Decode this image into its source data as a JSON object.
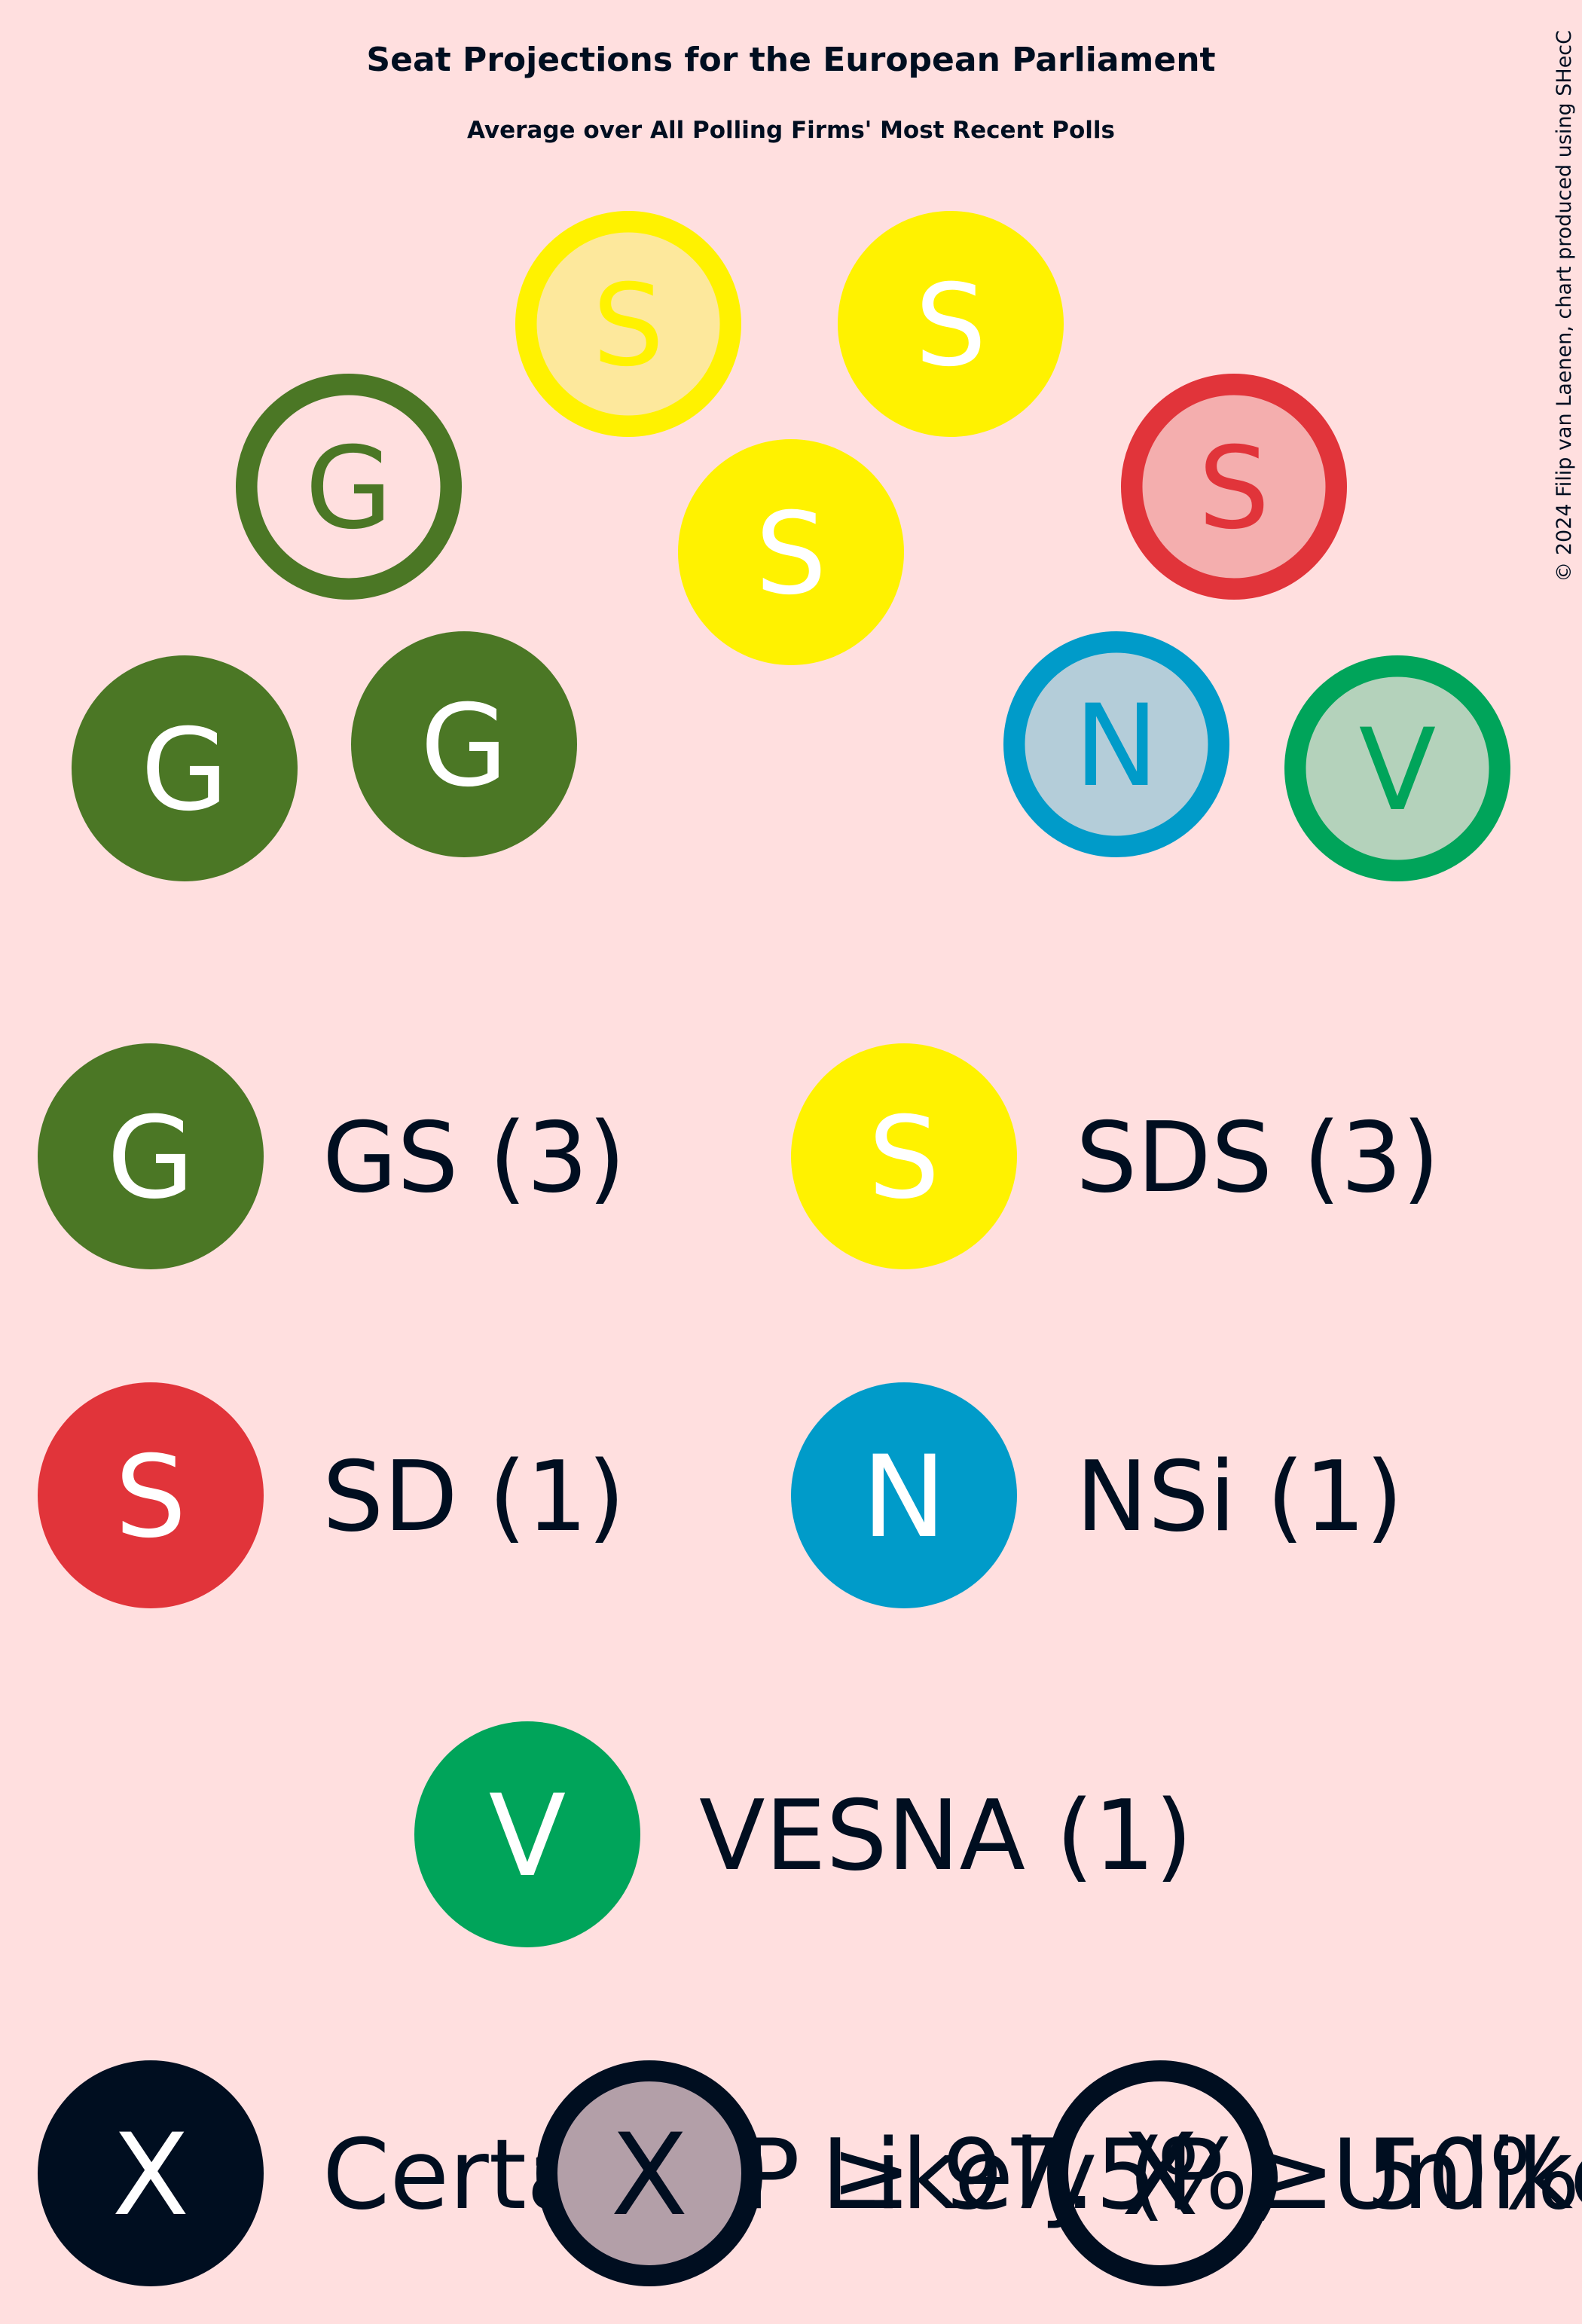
{
  "chart_data": {
    "type": "parliament-seats",
    "title": "Seat Projections for the European Parliament",
    "subtitle": "Average over All Polling Firms' Most Recent Polls",
    "credit": "© 2024 Filip van Laenen, chart produced using SHecC",
    "parties": [
      {
        "key": "gs",
        "letter": "G",
        "label": "GS (3)",
        "name": "GS",
        "seats": 3,
        "color": "#4b7725",
        "light": "#4b7725"
      },
      {
        "key": "sds",
        "letter": "S",
        "label": "SDS (3)",
        "name": "SDS",
        "seats": 3,
        "color": "#fff200",
        "light": "#fde89c"
      },
      {
        "key": "sd",
        "letter": "S",
        "label": "SD (1)",
        "name": "SD",
        "seats": 1,
        "color": "#e1343a",
        "light": "#f4aeae"
      },
      {
        "key": "nsi",
        "letter": "N",
        "label": "NSi (1)",
        "name": "NSi",
        "seats": 1,
        "color": "#009bc9",
        "light": "#b4cdd9"
      },
      {
        "key": "vesna",
        "letter": "V",
        "label": "VESNA (1)",
        "name": "VESNA",
        "seats": 1,
        "color": "#00a45a",
        "light": "#b4d2bb"
      }
    ],
    "seats": [
      {
        "party": "gs",
        "status": "certain"
      },
      {
        "party": "gs",
        "status": "certain"
      },
      {
        "party": "gs",
        "status": "unlikely"
      },
      {
        "party": "sds",
        "status": "likely"
      },
      {
        "party": "sds",
        "status": "certain"
      },
      {
        "party": "sds",
        "status": "certain"
      },
      {
        "party": "sd",
        "status": "likely"
      },
      {
        "party": "nsi",
        "status": "likely"
      },
      {
        "party": "vesna",
        "status": "likely"
      }
    ],
    "legend_status": [
      {
        "status": "certain",
        "letter": "X",
        "label": "Certain (P ≥ 97.5%)"
      },
      {
        "status": "likely",
        "letter": "X",
        "label": "Likely (P ≥ 50%)"
      },
      {
        "status": "unlikely",
        "letter": "X",
        "label": "Unlikely"
      }
    ],
    "status_colors": {
      "dark": "#000e20",
      "likely_fill": "#b39fa8"
    }
  }
}
